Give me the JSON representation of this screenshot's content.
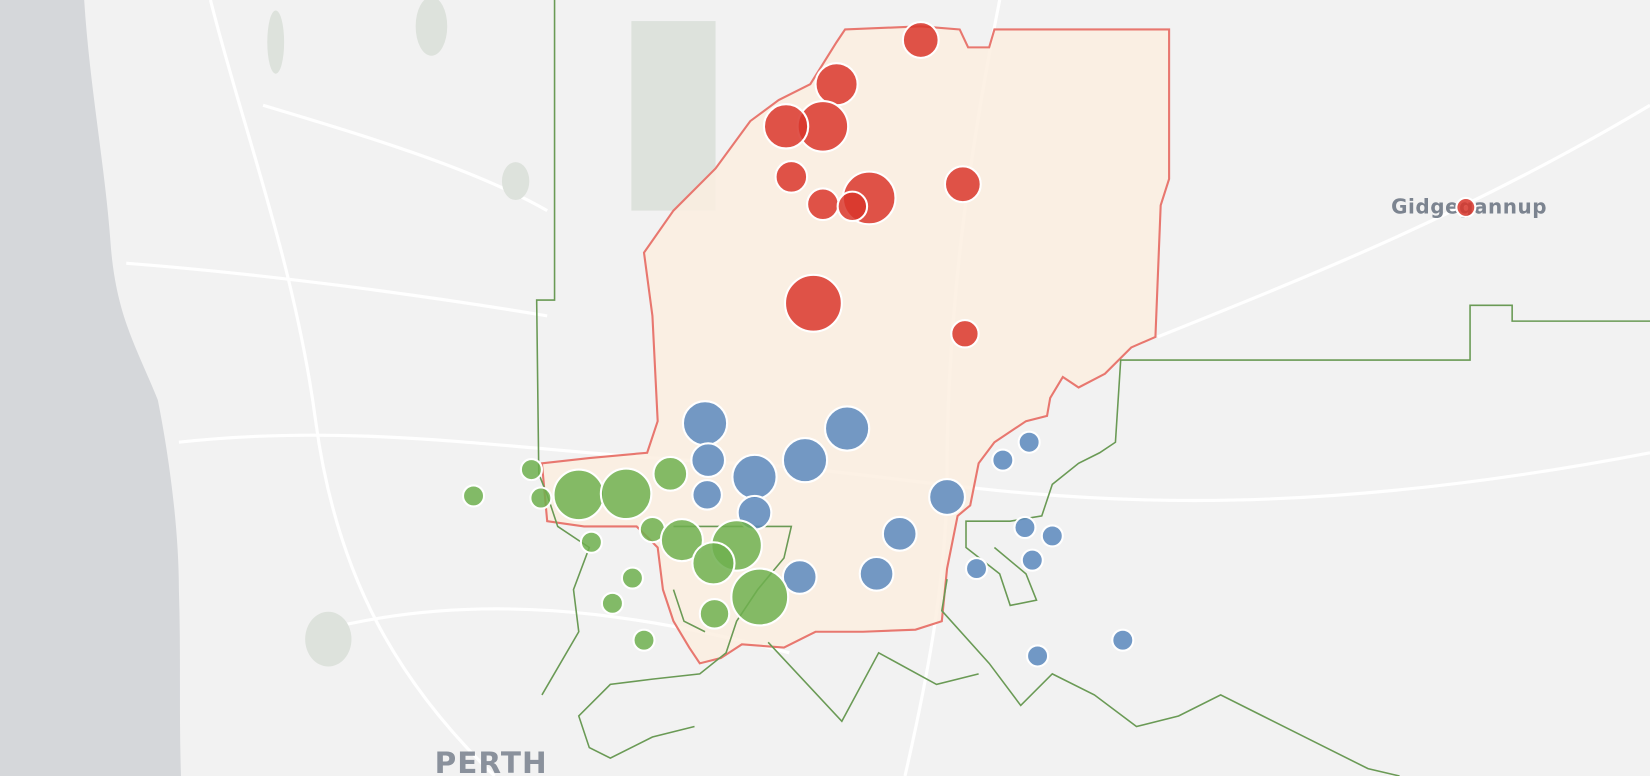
{
  "map": {
    "labels": {
      "town": "Gidgegannup",
      "city": "PERTH"
    }
  }
}
